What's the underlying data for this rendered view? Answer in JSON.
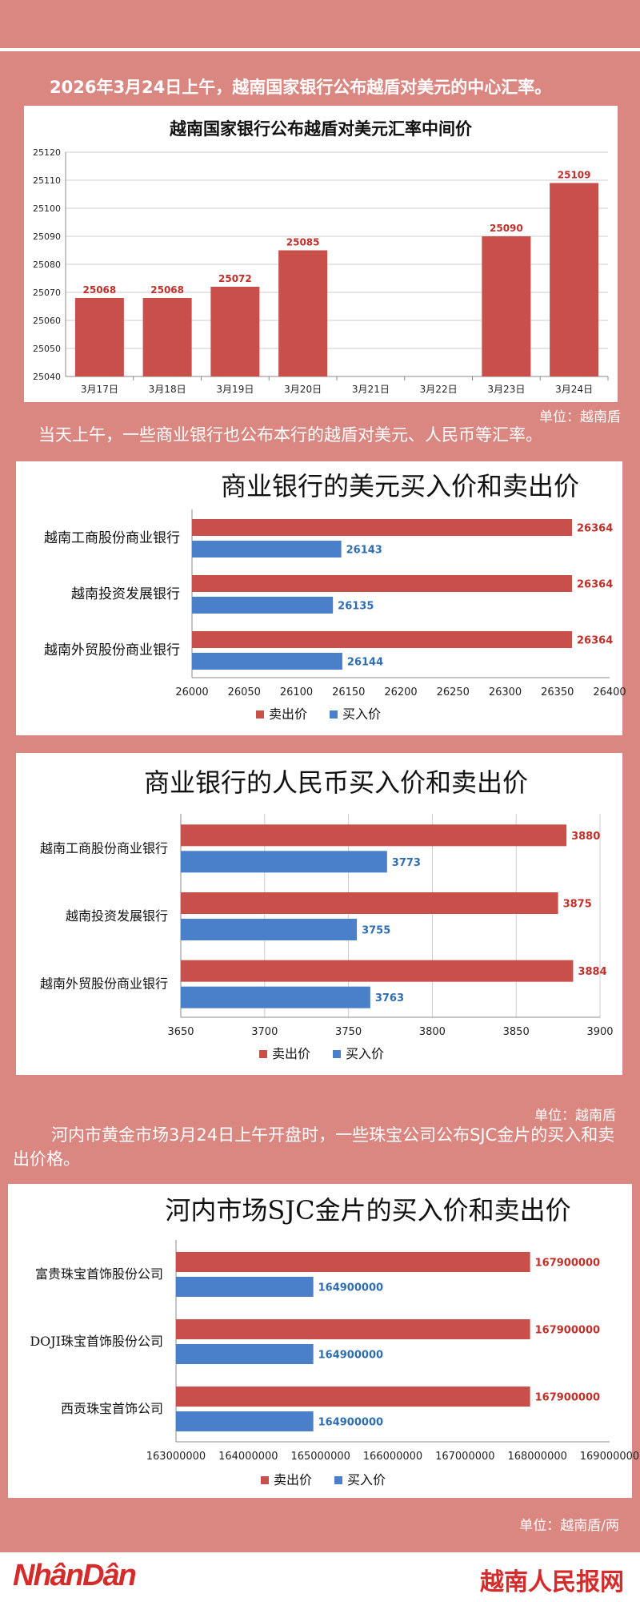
{
  "intro_text": "2026年3月24日上午，越南国家银行公布越盾对美元的中心汇率。",
  "unit_1": "单位：越南盾",
  "bank_intro_text": "当天上午，一些商业银行也公布本行的越盾对美元、人民币等汇率。",
  "unit_2": "单位：越南盾",
  "gold_intro_text": "河内市黄金市场3月24日上午开盘时，一些珠宝公司公布SJC金片的买入和卖出价格。",
  "unit_3": "单位：越南盾/两",
  "footer": {
    "logo": "NhânDân",
    "site": "越南人民报网"
  },
  "colors": {
    "sell": "#c9504a",
    "buy": "#4a7fc9",
    "sell_label": "#c0302a",
    "buy_label": "#2f6db3"
  },
  "chart_data": [
    {
      "type": "bar",
      "title": "越南国家银行公布越盾对美元汇率中间价",
      "categories": [
        "3月17日",
        "3月18日",
        "3月19日",
        "3月20日",
        "3月21日",
        "3月22日",
        "3月23日",
        "3月24日"
      ],
      "values": [
        25068,
        25068,
        25072,
        25085,
        null,
        null,
        25090,
        25109
      ],
      "ylim": [
        25040,
        25120
      ],
      "yticks": [
        25040,
        25050,
        25060,
        25070,
        25080,
        25090,
        25100,
        25110,
        25120
      ],
      "grid": true
    },
    {
      "type": "bar",
      "orientation": "horizontal",
      "title": "商业银行的美元买入价和卖出价",
      "categories": [
        "越南工商股份商业银行",
        "越南投资发展银行",
        "越南外贸股份商业银行"
      ],
      "series": [
        {
          "name": "卖出价",
          "values": [
            26364,
            26364,
            26364
          ]
        },
        {
          "name": "买入价",
          "values": [
            26143,
            26135,
            26144
          ]
        }
      ],
      "xlim": [
        26000,
        26400
      ],
      "xticks": [
        26000,
        26050,
        26100,
        26150,
        26200,
        26250,
        26300,
        26350,
        26400
      ],
      "legend": "bottom"
    },
    {
      "type": "bar",
      "orientation": "horizontal",
      "title": "商业银行的人民币买入价和卖出价",
      "categories": [
        "越南工商股份商业银行",
        "越南投资发展银行",
        "越南外贸股份商业银行"
      ],
      "series": [
        {
          "name": "卖出价",
          "values": [
            3880,
            3875,
            3884
          ]
        },
        {
          "name": "买入价",
          "values": [
            3773,
            3755,
            3763
          ]
        }
      ],
      "xlim": [
        3650,
        3900
      ],
      "xticks": [
        3650,
        3700,
        3750,
        3800,
        3850,
        3900
      ],
      "legend": "bottom",
      "grid": true
    },
    {
      "type": "bar",
      "orientation": "horizontal",
      "title": "河内市场SJC金片的买入价和卖出价",
      "categories": [
        "富贵珠宝首饰股份公司",
        "DOJI珠宝首饰股份公司",
        "西贡珠宝首饰公司"
      ],
      "series": [
        {
          "name": "卖出价",
          "values": [
            167900000,
            167900000,
            167900000
          ]
        },
        {
          "name": "买入价",
          "values": [
            164900000,
            164900000,
            164900000
          ]
        }
      ],
      "xlim": [
        163000000,
        169000000
      ],
      "xticks": [
        163000000,
        164000000,
        165000000,
        166000000,
        167000000,
        168000000,
        169000000
      ],
      "legend": "bottom"
    }
  ]
}
